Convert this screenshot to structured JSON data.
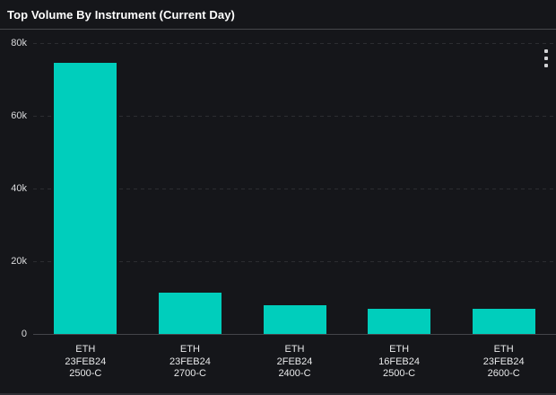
{
  "header": {
    "title": "Top Volume By Instrument (Current Day)"
  },
  "menu": {
    "kebab_icon": "vertical-three-dots"
  },
  "colors": {
    "background": "#15161a",
    "bar": "#00cebc",
    "grid_dashed": "#2c2d31",
    "axis_baseline": "#43444a",
    "title_text": "#ffffff",
    "tick_text": "#d9dadc",
    "category_text": "#e8e9ea",
    "header_divider": "#46474c"
  },
  "chart_data": {
    "type": "bar",
    "title": "Top Volume By Instrument (Current Day)",
    "categories": [
      [
        "ETH",
        "23FEB24",
        "2500-C"
      ],
      [
        "ETH",
        "23FEB24",
        "2700-C"
      ],
      [
        "ETH",
        "2FEB24",
        "2400-C"
      ],
      [
        "ETH",
        "16FEB24",
        "2500-C"
      ],
      [
        "ETH",
        "23FEB24",
        "2600-C"
      ]
    ],
    "values": [
      74500,
      11400,
      7800,
      7000,
      6800
    ],
    "xlabel": "",
    "ylabel": "",
    "ylim": [
      0,
      80000
    ],
    "yticks": [
      {
        "value": 0,
        "label": "0"
      },
      {
        "value": 20000,
        "label": "20k"
      },
      {
        "value": 40000,
        "label": "40k"
      },
      {
        "value": 60000,
        "label": "60k"
      },
      {
        "value": 80000,
        "label": "80k"
      }
    ],
    "grid": "horizontal-dashed",
    "legend": "none",
    "bar_color": "#00cebc"
  }
}
